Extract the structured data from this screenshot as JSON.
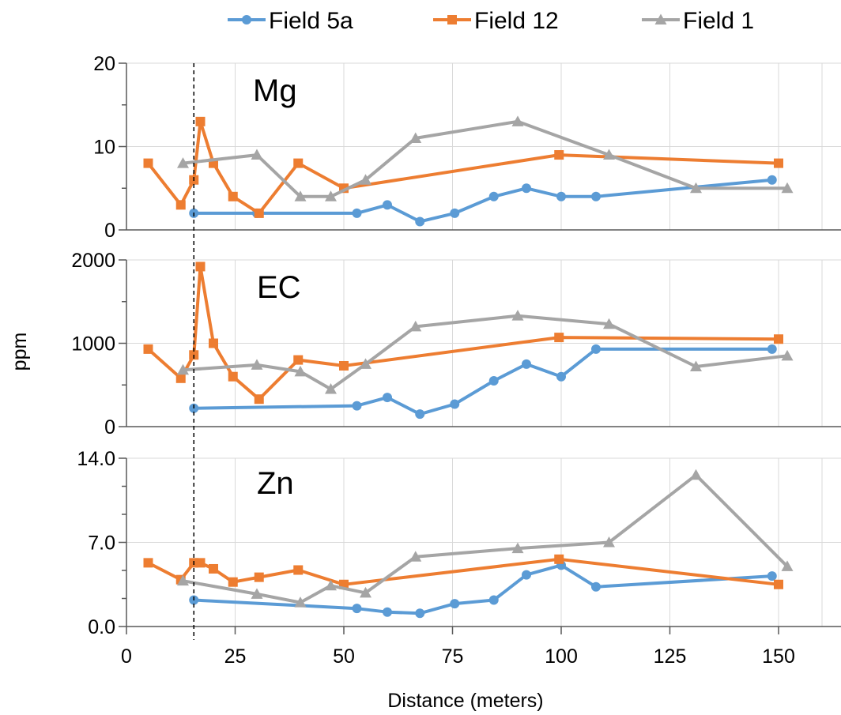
{
  "chart_data": {
    "type": "line",
    "legend_position": "top",
    "grid": true,
    "xlabel": "Distance (meters)",
    "ylabel": "ppm",
    "xlim": [
      0,
      160
    ],
    "x_ticks": [
      "0",
      "25",
      "50",
      "75",
      "100",
      "125",
      "150"
    ],
    "reference_line_x": 15.5,
    "series_style": [
      {
        "name": "Field 5a",
        "color": "#5b9bd5",
        "marker": "circle"
      },
      {
        "name": "Field 12",
        "color": "#ed7d31",
        "marker": "square"
      },
      {
        "name": "Field 1",
        "color": "#a5a5a5",
        "marker": "triangle"
      }
    ],
    "panels": [
      {
        "title": "Mg",
        "ylim": [
          0,
          20
        ],
        "y_ticks": [
          "0",
          "10",
          "20"
        ],
        "series": [
          {
            "name": "Field 5a",
            "points": [
              [
                15.5,
                2
              ],
              [
                30,
                2
              ],
              [
                53,
                2
              ],
              [
                60,
                3
              ],
              [
                67.5,
                1
              ],
              [
                75.5,
                2
              ],
              [
                84.5,
                4
              ],
              [
                92,
                5
              ],
              [
                100,
                4
              ],
              [
                108,
                4
              ],
              [
                148.5,
                6
              ]
            ]
          },
          {
            "name": "Field 12",
            "points": [
              [
                5,
                8
              ],
              [
                12.5,
                3
              ],
              [
                15.5,
                6
              ],
              [
                17,
                13
              ],
              [
                20,
                8
              ],
              [
                24.5,
                4
              ],
              [
                30.5,
                2
              ],
              [
                39.5,
                8
              ],
              [
                50,
                5
              ],
              [
                99.5,
                9
              ],
              [
                150,
                8
              ]
            ]
          },
          {
            "name": "Field 1",
            "points": [
              [
                13,
                8
              ],
              [
                30,
                9
              ],
              [
                40,
                4
              ],
              [
                47,
                4
              ],
              [
                55,
                6
              ],
              [
                66.5,
                11
              ],
              [
                90,
                13
              ],
              [
                111,
                9
              ],
              [
                131,
                5
              ],
              [
                152,
                5
              ]
            ]
          }
        ]
      },
      {
        "title": "EC",
        "ylim": [
          0,
          2000
        ],
        "y_ticks": [
          "0",
          "1000",
          "2000"
        ],
        "series": [
          {
            "name": "Field 5a",
            "points": [
              [
                15.5,
                220
              ],
              [
                53,
                250
              ],
              [
                60,
                350
              ],
              [
                67.5,
                150
              ],
              [
                75.5,
                270
              ],
              [
                84.5,
                550
              ],
              [
                92,
                750
              ],
              [
                100,
                600
              ],
              [
                108,
                930
              ],
              [
                148.5,
                930
              ]
            ]
          },
          {
            "name": "Field 12",
            "points": [
              [
                5,
                930
              ],
              [
                12.5,
                580
              ],
              [
                15.5,
                860
              ],
              [
                17,
                1920
              ],
              [
                20,
                1000
              ],
              [
                24.5,
                600
              ],
              [
                30.5,
                330
              ],
              [
                39.5,
                800
              ],
              [
                50,
                730
              ],
              [
                99.5,
                1070
              ],
              [
                150,
                1050
              ]
            ]
          },
          {
            "name": "Field 1",
            "points": [
              [
                13,
                680
              ],
              [
                30,
                740
              ],
              [
                40,
                660
              ],
              [
                47,
                450
              ],
              [
                55,
                750
              ],
              [
                66.5,
                1200
              ],
              [
                90,
                1330
              ],
              [
                111,
                1230
              ],
              [
                131,
                720
              ],
              [
                152,
                850
              ]
            ]
          }
        ]
      },
      {
        "title": "Zn",
        "ylim": [
          0,
          14
        ],
        "y_ticks": [
          "0.0",
          "7.0",
          "14.0"
        ],
        "series": [
          {
            "name": "Field 5a",
            "points": [
              [
                15.5,
                2.2
              ],
              [
                53,
                1.5
              ],
              [
                60,
                1.2
              ],
              [
                67.5,
                1.1
              ],
              [
                75.5,
                1.9
              ],
              [
                84.5,
                2.2
              ],
              [
                92,
                4.3
              ],
              [
                100,
                5.1
              ],
              [
                108,
                3.3
              ],
              [
                148.5,
                4.2
              ]
            ]
          },
          {
            "name": "Field 12",
            "points": [
              [
                5,
                5.3
              ],
              [
                12.5,
                3.9
              ],
              [
                15.5,
                5.3
              ],
              [
                17,
                5.3
              ],
              [
                20,
                4.8
              ],
              [
                24.5,
                3.7
              ],
              [
                30.5,
                4.1
              ],
              [
                39.5,
                4.7
              ],
              [
                50,
                3.5
              ],
              [
                99.5,
                5.6
              ],
              [
                150,
                3.5
              ]
            ]
          },
          {
            "name": "Field 1",
            "points": [
              [
                13,
                3.8
              ],
              [
                30,
                2.7
              ],
              [
                40,
                2.0
              ],
              [
                47,
                3.4
              ],
              [
                55,
                2.8
              ],
              [
                66.5,
                5.8
              ],
              [
                90,
                6.5
              ],
              [
                111,
                7.0
              ],
              [
                131,
                12.6
              ],
              [
                152,
                5.0
              ]
            ]
          }
        ]
      }
    ]
  }
}
